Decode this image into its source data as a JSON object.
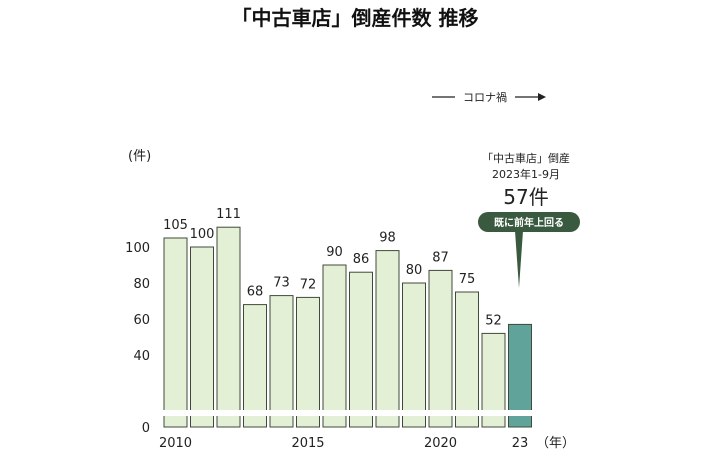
{
  "chart_data": {
    "type": "bar",
    "title": "「中古車店」倒産件数 推移",
    "categories": [
      "2010",
      "2011",
      "2012",
      "2013",
      "2014",
      "2015",
      "2016",
      "2017",
      "2018",
      "2019",
      "2020",
      "2021",
      "2022",
      "2023"
    ],
    "values": [
      105,
      100,
      111,
      68,
      73,
      72,
      90,
      86,
      98,
      80,
      87,
      75,
      52,
      57
    ],
    "x_tick_labels": [
      {
        "index": 0,
        "label": "2010"
      },
      {
        "index": 5,
        "label": "2015"
      },
      {
        "index": 10,
        "label": "2020"
      },
      {
        "index": 13,
        "label": "23"
      }
    ],
    "x_unit_label": "（年）",
    "y_unit_label": "(件)",
    "y_ticks": [
      "0",
      "40",
      "60",
      "80",
      "100"
    ],
    "ylim": [
      0,
      120
    ],
    "axis_break": true,
    "colors": {
      "bar_fill": "#e3f0d6",
      "bar_stroke": "#3f4a3a",
      "highlight_fill": "#5fa39a",
      "badge": "#3a5a40"
    },
    "annotations": {
      "covid": "コロナ禍",
      "line1": "「中古車店」倒産",
      "line2": "2023年1-9月",
      "big": "57件",
      "badge": "既に前年上回る"
    }
  }
}
